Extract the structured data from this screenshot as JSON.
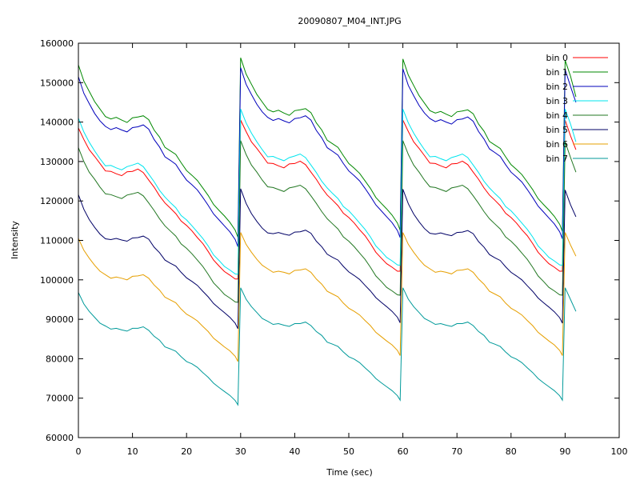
{
  "chart_data": {
    "type": "line",
    "title": "20090807_M04_INT.JPG",
    "xlabel": "Time (sec)",
    "ylabel": "Intensity",
    "xlim": [
      0,
      100
    ],
    "ylim": [
      60000,
      160000
    ],
    "xticks": [
      0,
      10,
      20,
      30,
      40,
      50,
      60,
      70,
      80,
      90,
      100
    ],
    "yticks": [
      60000,
      70000,
      80000,
      90000,
      100000,
      110000,
      120000,
      130000,
      140000,
      150000,
      160000
    ],
    "grid": false,
    "legend_position": "top-right",
    "x": [
      0,
      1,
      2,
      3,
      4,
      5,
      6,
      7,
      8,
      9,
      10,
      11,
      12,
      13,
      14,
      15,
      16,
      17,
      18,
      19,
      20,
      21,
      22,
      23,
      24,
      25,
      26,
      27,
      28,
      29,
      29.5,
      30,
      31,
      32,
      33,
      34,
      35,
      36,
      37,
      38,
      39,
      40,
      41,
      42,
      43,
      44,
      45,
      46,
      47,
      48,
      49,
      50,
      51,
      52,
      53,
      54,
      55,
      56,
      57,
      58,
      59,
      59.5,
      60,
      61,
      62,
      63,
      64,
      65,
      66,
      67,
      68,
      69,
      70,
      71,
      72,
      73,
      74,
      75,
      76,
      77,
      78,
      79,
      80,
      81,
      82,
      83,
      84,
      85,
      86,
      87,
      88,
      89,
      89.5,
      90,
      91,
      92
    ],
    "series": [
      {
        "name": "bin 0",
        "color": "#ff0000",
        "values": [
          138500,
          135600,
          133000,
          131300,
          129500,
          127600,
          127500,
          126900,
          126400,
          127400,
          127500,
          128100,
          127200,
          125300,
          123500,
          121300,
          119500,
          118200,
          116800,
          114900,
          113800,
          112400,
          110700,
          109200,
          107200,
          105000,
          103500,
          102100,
          101200,
          100200,
          100200,
          140500,
          137600,
          135000,
          133300,
          131500,
          129600,
          129500,
          128900,
          128400,
          129400,
          129500,
          130100,
          129200,
          127300,
          125500,
          123300,
          121500,
          120200,
          118800,
          116900,
          115800,
          114400,
          112700,
          111200,
          109200,
          107000,
          105500,
          104100,
          103200,
          102200,
          102200,
          140500,
          137600,
          135000,
          133300,
          131500,
          129600,
          129500,
          128900,
          128400,
          129400,
          129500,
          130100,
          129200,
          127300,
          125500,
          123300,
          121500,
          120200,
          118800,
          116900,
          115800,
          114400,
          112700,
          111200,
          109200,
          107000,
          105500,
          104100,
          103200,
          102200,
          102200,
          140500,
          136500,
          133000
        ]
      },
      {
        "name": "bin 1",
        "color": "#008800",
        "values": [
          154500,
          150400,
          147800,
          145200,
          143300,
          141400,
          140800,
          141200,
          140500,
          139900,
          141100,
          141300,
          141600,
          140600,
          138000,
          136200,
          133600,
          132700,
          131800,
          129700,
          127700,
          126500,
          125200,
          123300,
          121400,
          119100,
          117600,
          116200,
          114600,
          112600,
          110800,
          156300,
          152200,
          149600,
          147000,
          145100,
          143200,
          142600,
          143000,
          142300,
          141700,
          142900,
          143100,
          143400,
          142400,
          139800,
          138000,
          135400,
          134500,
          133600,
          131500,
          129500,
          128300,
          127000,
          125100,
          123200,
          120900,
          119400,
          118000,
          116400,
          114400,
          112600,
          156000,
          151900,
          149300,
          146700,
          144800,
          142900,
          142300,
          142700,
          142000,
          141400,
          142600,
          142800,
          143100,
          142100,
          139500,
          137700,
          135100,
          134200,
          133300,
          131200,
          129200,
          128000,
          126700,
          124800,
          122900,
          120600,
          119100,
          117700,
          116100,
          114100,
          112300,
          155700,
          151600,
          146400
        ]
      },
      {
        "name": "bin 2",
        "color": "#0000bb",
        "values": [
          151500,
          147300,
          144700,
          142200,
          140300,
          138900,
          138100,
          138600,
          138000,
          137500,
          138600,
          138800,
          139300,
          138200,
          135600,
          133700,
          131200,
          130300,
          129300,
          127200,
          125300,
          124100,
          122800,
          120900,
          118900,
          116700,
          115200,
          113700,
          112200,
          110200,
          108400,
          153800,
          149600,
          147000,
          144500,
          142600,
          141200,
          140400,
          140900,
          140300,
          139800,
          140900,
          141100,
          141600,
          140500,
          137900,
          136000,
          133500,
          132600,
          131600,
          129500,
          127600,
          126400,
          125100,
          123200,
          121200,
          119000,
          117500,
          116000,
          114500,
          112500,
          110700,
          153500,
          149300,
          146700,
          144200,
          142300,
          140900,
          140100,
          140600,
          140000,
          139500,
          140600,
          140800,
          141300,
          140200,
          137600,
          135700,
          133200,
          132300,
          131300,
          129200,
          127300,
          126100,
          124800,
          122900,
          120900,
          118700,
          117200,
          115700,
          114200,
          112200,
          110400,
          153300,
          149000,
          145000
        ]
      },
      {
        "name": "bin 3",
        "color": "#00e5ee",
        "values": [
          141000,
          137500,
          134900,
          132700,
          130700,
          128900,
          129000,
          128400,
          127900,
          128700,
          129100,
          129600,
          128700,
          126800,
          124900,
          122700,
          121000,
          119600,
          118300,
          116300,
          115200,
          113700,
          112100,
          110500,
          108600,
          106300,
          104900,
          103400,
          102500,
          101500,
          101400,
          143300,
          139800,
          137200,
          135000,
          133000,
          131200,
          131300,
          130700,
          130200,
          131000,
          131400,
          131900,
          131000,
          129100,
          127200,
          125000,
          123300,
          121900,
          120600,
          118600,
          117500,
          116000,
          114400,
          112800,
          110900,
          108600,
          107200,
          105700,
          104800,
          103800,
          103700,
          143300,
          139800,
          137200,
          135000,
          133000,
          131200,
          131300,
          130700,
          130200,
          131000,
          131400,
          131900,
          131000,
          129100,
          127200,
          125000,
          123300,
          121900,
          120600,
          118600,
          117500,
          116000,
          114400,
          112800,
          110900,
          108600,
          107200,
          105700,
          104800,
          103800,
          103700,
          143300,
          139500,
          135000
        ]
      },
      {
        "name": "bin 4",
        "color": "#227722",
        "values": [
          133500,
          130000,
          127300,
          125500,
          123500,
          121800,
          121600,
          121100,
          120600,
          121500,
          121800,
          122200,
          121300,
          119500,
          117600,
          115500,
          113700,
          112400,
          111100,
          109100,
          108000,
          106600,
          105000,
          103400,
          101400,
          99200,
          97800,
          96300,
          95400,
          94400,
          94300,
          135300,
          131800,
          129100,
          127300,
          125300,
          123600,
          123400,
          122900,
          122400,
          123300,
          123600,
          124000,
          123100,
          121300,
          119400,
          117300,
          115500,
          114200,
          112900,
          110900,
          109800,
          108400,
          106800,
          105200,
          103200,
          101000,
          99600,
          98100,
          97200,
          96200,
          96100,
          135300,
          131800,
          129100,
          127300,
          125300,
          123600,
          123400,
          122900,
          122400,
          123300,
          123600,
          124000,
          123100,
          121300,
          119400,
          117300,
          115500,
          114200,
          112900,
          110900,
          109800,
          108400,
          106800,
          105200,
          103200,
          101000,
          99600,
          98100,
          97200,
          96200,
          96100,
          135000,
          131000,
          127300
        ]
      },
      {
        "name": "bin 5",
        "color": "#000066",
        "values": [
          121600,
          117900,
          115300,
          113300,
          111600,
          110400,
          110200,
          110500,
          110100,
          109800,
          110600,
          110700,
          111100,
          110300,
          108300,
          106900,
          105000,
          104200,
          103500,
          101900,
          100500,
          99600,
          98600,
          97100,
          95700,
          94000,
          92800,
          91700,
          90500,
          89000,
          87600,
          123100,
          119400,
          116800,
          114800,
          113100,
          111900,
          111700,
          112000,
          111600,
          111300,
          112100,
          112200,
          112600,
          111800,
          109800,
          108400,
          106500,
          105700,
          105000,
          103400,
          102000,
          101100,
          100100,
          98600,
          97200,
          95500,
          94300,
          93200,
          92000,
          90500,
          89100,
          123000,
          119300,
          116700,
          114700,
          113000,
          111800,
          111600,
          111900,
          111500,
          111200,
          112000,
          112100,
          112500,
          111700,
          109700,
          108300,
          106400,
          105600,
          104900,
          103300,
          101900,
          101000,
          100000,
          98500,
          97100,
          95400,
          94200,
          93100,
          91900,
          90400,
          89000,
          122800,
          119000,
          116000
        ]
      },
      {
        "name": "bin 6",
        "color": "#e69f00",
        "values": [
          110500,
          107500,
          105500,
          103700,
          102200,
          101300,
          100400,
          100700,
          100400,
          100000,
          100900,
          101000,
          101300,
          100400,
          98700,
          97400,
          95600,
          94900,
          94200,
          92600,
          91300,
          90500,
          89600,
          88200,
          86900,
          85200,
          84100,
          83000,
          82000,
          80600,
          79300,
          112000,
          109000,
          107000,
          105200,
          103700,
          102800,
          101900,
          102200,
          101900,
          101500,
          102400,
          102500,
          102800,
          101900,
          100200,
          98900,
          97100,
          96400,
          95700,
          94100,
          92800,
          92000,
          91100,
          89700,
          88400,
          86700,
          85600,
          84500,
          83500,
          82100,
          80800,
          112000,
          109000,
          107000,
          105200,
          103700,
          102800,
          101900,
          102200,
          101900,
          101500,
          102400,
          102500,
          102800,
          101900,
          100200,
          98900,
          97100,
          96400,
          95700,
          94100,
          92800,
          92000,
          91100,
          89700,
          88400,
          86700,
          85600,
          84500,
          83500,
          82100,
          80800,
          112000,
          108800,
          106000
        ]
      },
      {
        "name": "bin 7",
        "color": "#009a9a",
        "values": [
          96800,
          93900,
          92000,
          90500,
          89000,
          88300,
          87500,
          87700,
          87300,
          87000,
          87700,
          87700,
          88100,
          87200,
          85700,
          84700,
          83000,
          82500,
          81900,
          80500,
          79300,
          78700,
          77800,
          76500,
          75300,
          73800,
          72700,
          71700,
          70700,
          69400,
          68300,
          98000,
          95100,
          93200,
          91700,
          90200,
          89500,
          88700,
          88900,
          88500,
          88200,
          88900,
          88900,
          89300,
          88400,
          86900,
          85900,
          84200,
          83700,
          83100,
          81700,
          80500,
          79900,
          79000,
          77700,
          76500,
          75000,
          73900,
          72900,
          71900,
          70600,
          69500,
          98000,
          95100,
          93200,
          91700,
          90200,
          89500,
          88700,
          88900,
          88500,
          88200,
          88900,
          88900,
          89300,
          88400,
          86900,
          85900,
          84200,
          83700,
          83100,
          81700,
          80500,
          79900,
          79000,
          77700,
          76500,
          75000,
          73900,
          72900,
          71900,
          70600,
          69500,
          98000,
          95000,
          92000
        ]
      }
    ]
  }
}
